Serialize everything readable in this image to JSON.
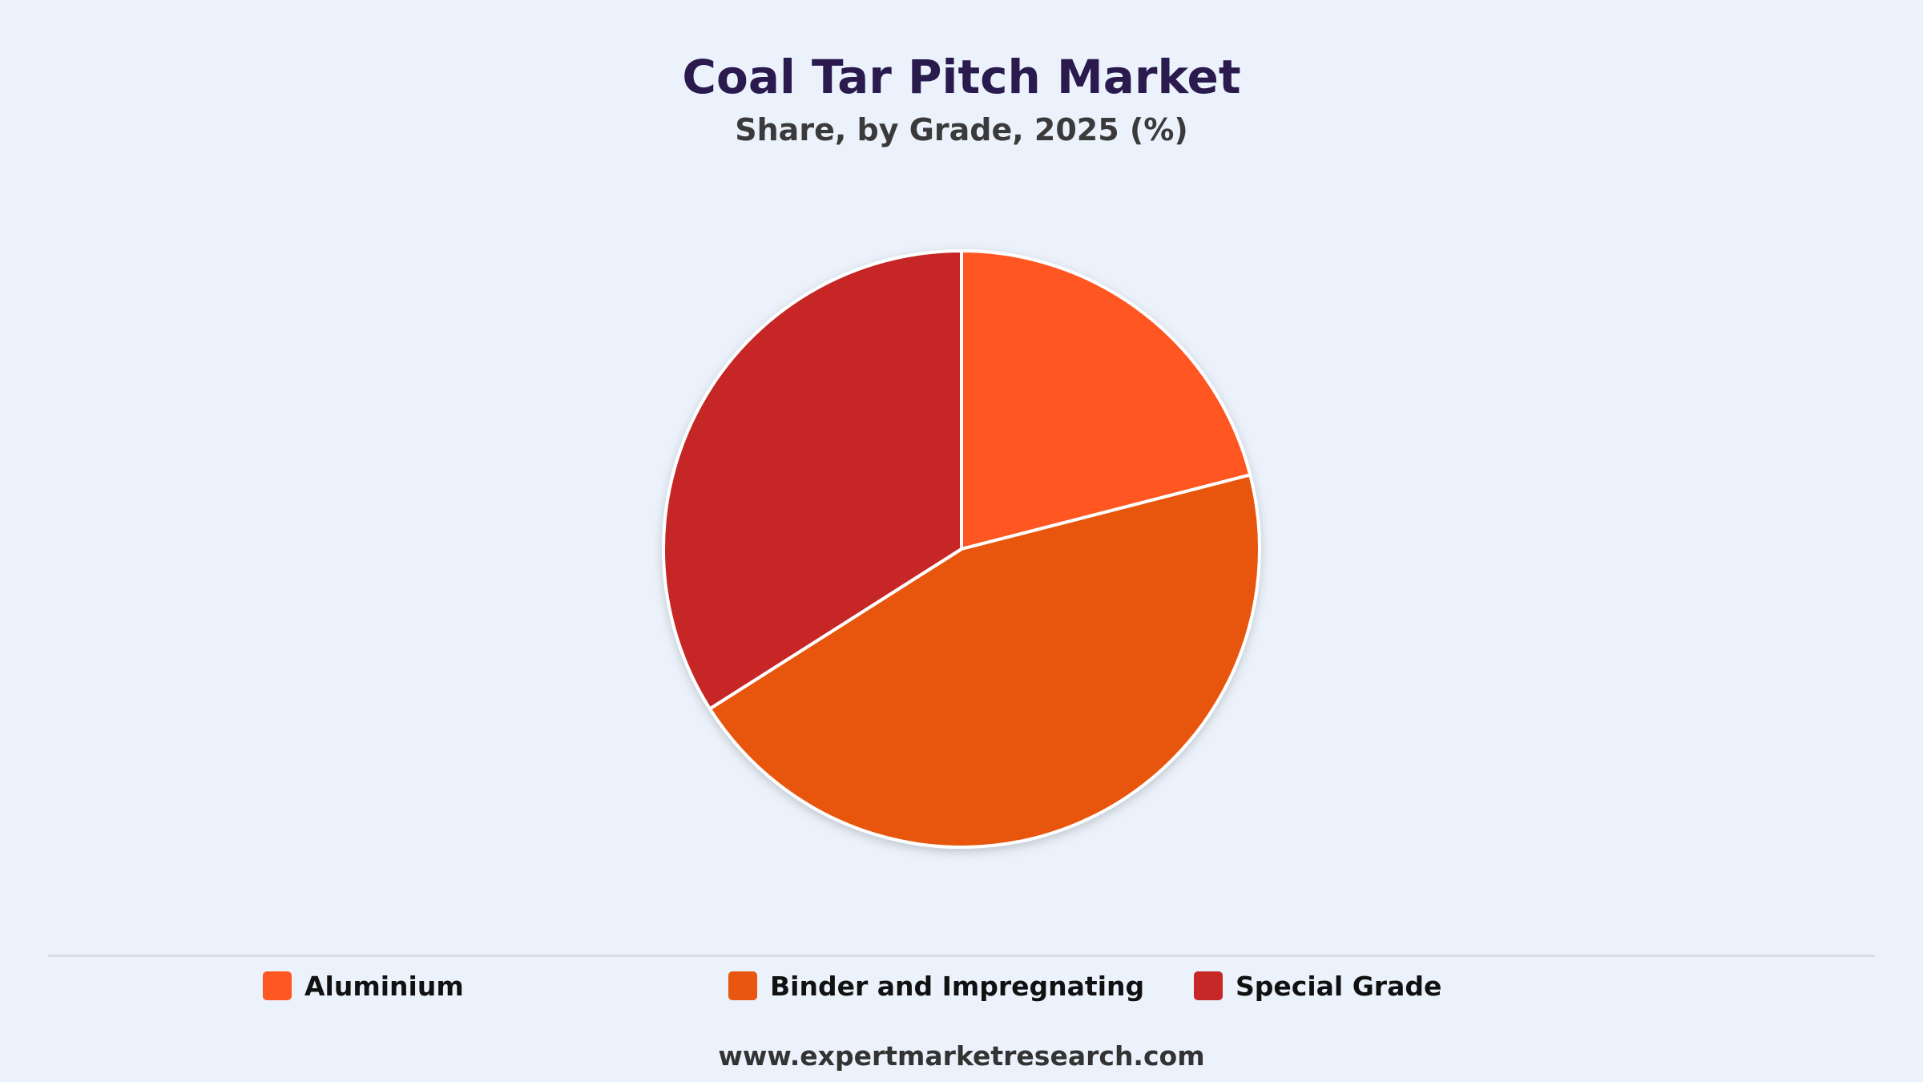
{
  "header": {
    "title": "Coal Tar Pitch Market",
    "subtitle": "Share, by Grade, 2025 (%)"
  },
  "chart_data": {
    "type": "pie",
    "title": "Coal Tar Pitch Market",
    "subtitle": "Share, by Grade, 2025 (%)",
    "start_angle_deg": 0,
    "direction": "clockwise",
    "legend_position": "bottom",
    "categories": [
      "Aluminium",
      "Binder and Impregnating",
      "Special Grade"
    ],
    "values": [
      21,
      45,
      34
    ],
    "colors": [
      "#ff5722",
      "#e8560f",
      "#c62828"
    ]
  },
  "legend": {
    "items": [
      {
        "label": "Aluminium",
        "color": "#ff5722"
      },
      {
        "label": "Binder and Impregnating",
        "color": "#e8560f"
      },
      {
        "label": "Special Grade",
        "color": "#c62828"
      }
    ]
  },
  "footer": {
    "source": "www.expertmarketresearch.com"
  }
}
